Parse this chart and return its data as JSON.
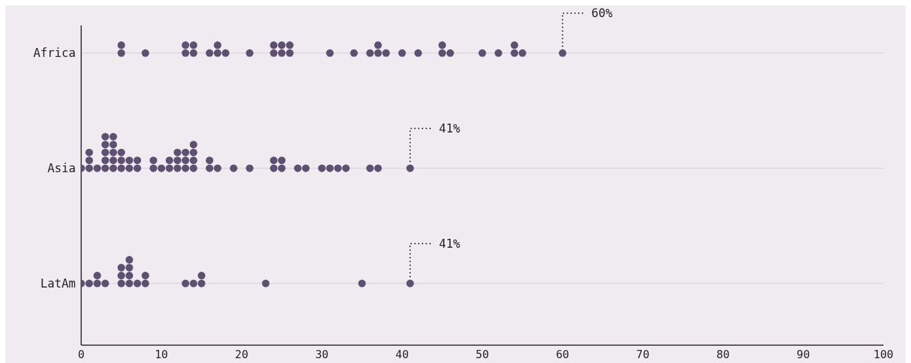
{
  "chart_data": {
    "type": "scatter",
    "categories": [
      "Africa",
      "Asia",
      "LatAm"
    ],
    "orientation": "horizontal",
    "xlim": [
      0,
      100
    ],
    "xticks": [
      0,
      10,
      20,
      30,
      40,
      50,
      60,
      70,
      80,
      90,
      100
    ],
    "grid": "y",
    "marker": "circle",
    "series": [
      {
        "color": "#5e5070",
        "values": [
          5,
          0,
          0
        ]
      },
      {
        "color": "#5e5070",
        "values": [
          5,
          1,
          1
        ]
      },
      {
        "color": "#5e5070",
        "values": [
          8,
          1,
          2
        ]
      },
      {
        "color": "#5e5070",
        "values": [
          13,
          1,
          2
        ]
      },
      {
        "color": "#5e5070",
        "values": [
          13,
          2,
          3
        ]
      },
      {
        "color": "#5e5070",
        "values": [
          14,
          3,
          5
        ]
      },
      {
        "color": "#5e5070",
        "values": [
          14,
          3,
          5
        ]
      },
      {
        "color": "#5e5070",
        "values": [
          16,
          3,
          5
        ]
      },
      {
        "color": "#5e5070",
        "values": [
          17,
          3,
          6
        ]
      },
      {
        "color": "#5e5070",
        "values": [
          17,
          3,
          6
        ]
      },
      {
        "color": "#5e5070",
        "values": [
          18,
          4,
          6
        ]
      },
      {
        "color": "#5e5070",
        "values": [
          21,
          4,
          6
        ]
      },
      {
        "color": "#5e5070",
        "values": [
          24,
          4,
          7
        ]
      },
      {
        "color": "#5e5070",
        "values": [
          24,
          4,
          8
        ]
      },
      {
        "color": "#5e5070",
        "values": [
          25,
          4,
          8
        ]
      },
      {
        "color": "#5e5070",
        "values": [
          25,
          5,
          13
        ]
      },
      {
        "color": "#5e5070",
        "values": [
          26,
          5,
          14
        ]
      },
      {
        "color": "#5e5070",
        "values": [
          26,
          5,
          15
        ]
      },
      {
        "color": "#5e5070",
        "values": [
          31,
          6,
          15
        ]
      },
      {
        "color": "#5e5070",
        "values": [
          34,
          6,
          23
        ]
      },
      {
        "color": "#5e5070",
        "values": [
          36,
          7,
          35
        ]
      },
      {
        "color": "#5e5070",
        "values": [
          37,
          7,
          41
        ]
      },
      {
        "color": "#5e5070",
        "values": [
          37,
          9,
          null
        ]
      },
      {
        "color": "#5e5070",
        "values": [
          38,
          9,
          null
        ]
      },
      {
        "color": "#5e5070",
        "values": [
          40,
          10,
          null
        ]
      },
      {
        "color": "#5e5070",
        "values": [
          42,
          11,
          null
        ]
      },
      {
        "color": "#5e5070",
        "values": [
          45,
          11,
          null
        ]
      },
      {
        "color": "#5e5070",
        "values": [
          45,
          12,
          null
        ]
      },
      {
        "color": "#5e5070",
        "values": [
          46,
          12,
          null
        ]
      },
      {
        "color": "#5e5070",
        "values": [
          50,
          12,
          null
        ]
      },
      {
        "color": "#5e5070",
        "values": [
          52,
          13,
          null
        ]
      },
      {
        "color": "#5e5070",
        "values": [
          54,
          13,
          null
        ]
      },
      {
        "color": "#5e5070",
        "values": [
          54,
          13,
          null
        ]
      },
      {
        "color": "#5e5070",
        "values": [
          55,
          14,
          null
        ]
      },
      {
        "color": "#5e5070",
        "values": [
          60,
          14,
          null
        ]
      },
      {
        "color": "#5e5070",
        "values": [
          null,
          14,
          null
        ]
      },
      {
        "color": "#5e5070",
        "values": [
          null,
          14,
          null
        ]
      },
      {
        "color": "#5e5070",
        "values": [
          null,
          16,
          null
        ]
      },
      {
        "color": "#5e5070",
        "values": [
          null,
          16,
          null
        ]
      },
      {
        "color": "#5e5070",
        "values": [
          null,
          17,
          null
        ]
      },
      {
        "color": "#5e5070",
        "values": [
          null,
          19,
          null
        ]
      },
      {
        "color": "#5e5070",
        "values": [
          null,
          21,
          null
        ]
      },
      {
        "color": "#5e5070",
        "values": [
          null,
          24,
          null
        ]
      },
      {
        "color": "#5e5070",
        "values": [
          null,
          24,
          null
        ]
      },
      {
        "color": "#5e5070",
        "values": [
          null,
          25,
          null
        ]
      },
      {
        "color": "#5e5070",
        "values": [
          null,
          25,
          null
        ]
      },
      {
        "color": "#5e5070",
        "values": [
          null,
          27,
          null
        ]
      },
      {
        "color": "#5e5070",
        "values": [
          null,
          28,
          null
        ]
      },
      {
        "color": "#5e5070",
        "values": [
          null,
          30,
          null
        ]
      },
      {
        "color": "#5e5070",
        "values": [
          null,
          31,
          null
        ]
      },
      {
        "color": "#5e5070",
        "values": [
          null,
          32,
          null
        ]
      },
      {
        "color": "#5e5070",
        "values": [
          null,
          33,
          null
        ]
      },
      {
        "color": "#5e5070",
        "values": [
          null,
          36,
          null
        ]
      },
      {
        "color": "#5e5070",
        "values": [
          null,
          37,
          null
        ]
      },
      {
        "color": "#5e5070",
        "values": [
          null,
          41,
          null
        ]
      }
    ],
    "annotations": [
      "60%",
      "41%",
      "41%"
    ]
  }
}
